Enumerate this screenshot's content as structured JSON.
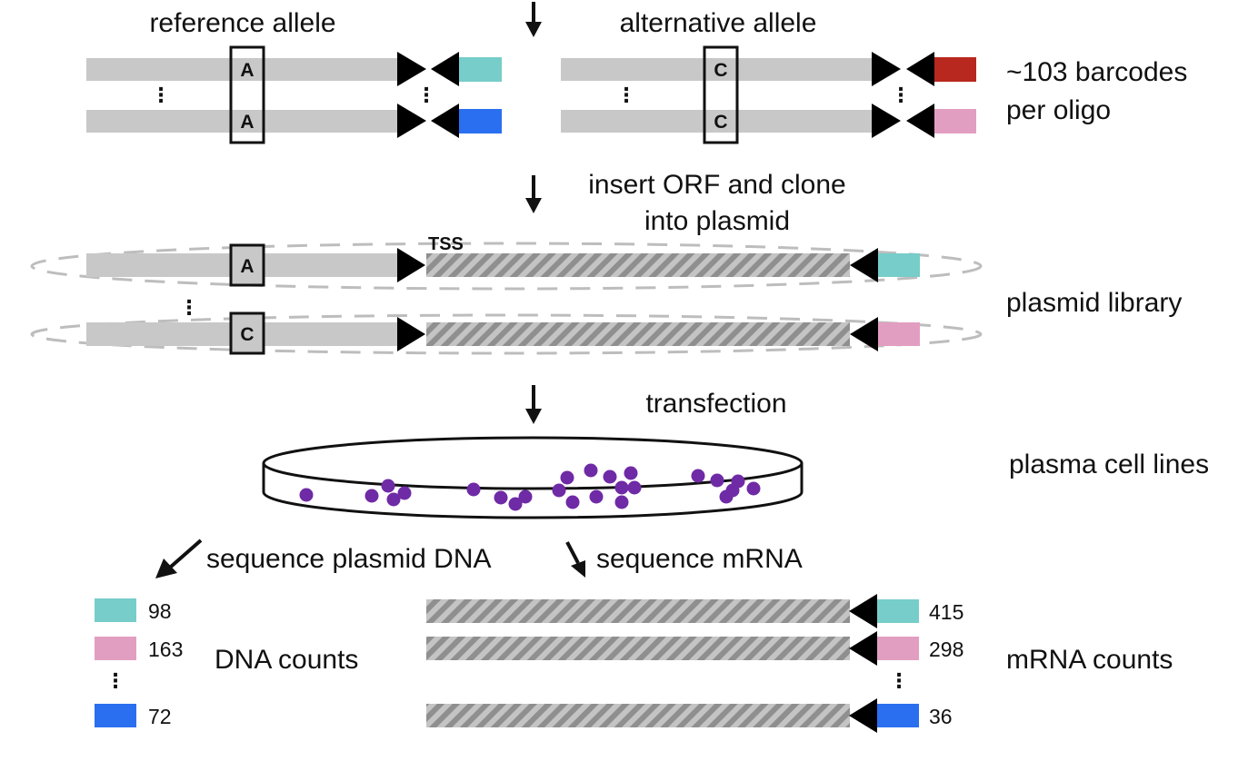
{
  "labels": {
    "reference_allele": "reference allele",
    "alternative_allele": "alternative allele",
    "barcodes_line1": "~103 barcodes",
    "barcodes_line2": "per oligo",
    "insert_line1": "insert ORF and clone",
    "insert_line2": "into plasmid",
    "tss": "TSS",
    "plasmid_library": "plasmid library",
    "transfection": "transfection",
    "plasma_cell_lines": "plasma cell lines",
    "sequence_plasmid_dna": "sequence plasmid DNA",
    "sequence_mrna": "sequence mRNA",
    "dna_counts": "DNA counts",
    "mrna_counts": "mRNA counts",
    "ellipsis": "⋮"
  },
  "alleles": {
    "ref": "A",
    "alt": "C"
  },
  "colors": {
    "teal": "#76cdca",
    "blue": "#2a6ff0",
    "red": "#b8281e",
    "pink": "#e29ec1",
    "grey_bar": "#c8c8c8",
    "hatch": "#8f8f8f",
    "cell": "#6f2aa6"
  },
  "dna_counts": [
    {
      "value": "98",
      "color": "teal"
    },
    {
      "value": "163",
      "color": "pink"
    },
    {
      "value": "72",
      "color": "blue"
    }
  ],
  "mrna_counts": [
    {
      "value": "415",
      "color": "teal"
    },
    {
      "value": "298",
      "color": "pink"
    },
    {
      "value": "36",
      "color": "blue"
    }
  ],
  "icons": {
    "arrow": "down-arrow-icon",
    "promoter": "triangle-right-icon",
    "barcode_tag": "triangle-left-icon"
  }
}
